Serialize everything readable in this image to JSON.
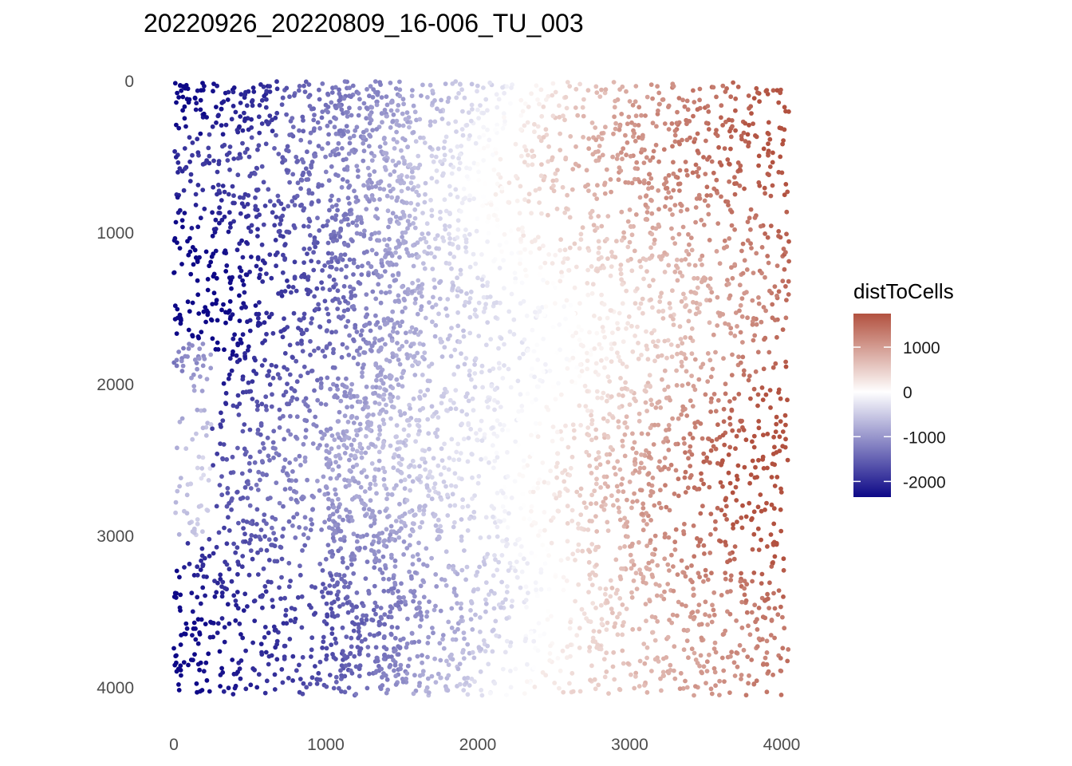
{
  "chart_data": {
    "type": "scatter",
    "title": "20220926_20220809_16-006_TU_003",
    "xlabel": "",
    "ylabel": "",
    "xlim": [
      0,
      4050
    ],
    "ylim": [
      0,
      4050
    ],
    "y_reversed": true,
    "grid": false,
    "x_ticks": [
      0,
      1000,
      2000,
      3000,
      4000
    ],
    "x_tick_labels": [
      "0",
      "1000",
      "2000",
      "3000",
      "4000"
    ],
    "y_ticks": [
      0,
      1000,
      2000,
      3000,
      4000
    ],
    "y_tick_labels": [
      "0",
      "1000",
      "2000",
      "3000",
      "4000"
    ],
    "color_variable": "distToCells",
    "colorbar": {
      "title": "distToCells",
      "range": [
        -2350,
        1750
      ],
      "ticks": [
        1000,
        0,
        -1000,
        -2000
      ],
      "tick_labels": [
        "1000",
        "0",
        "-1000",
        "-2000"
      ],
      "low_color": "#0d0887",
      "mid_color": "#ffffff",
      "high_color": "#b2513f",
      "placement": "right"
    },
    "point_color_model": "distToCells increases from about -2350 at x≈0 to about +1750 at x≈4050; point density varies across the field (dense bands near y≈0–300 at x<700, x≈1000–1600 across most y, and sparser toward the right edge)",
    "series": [
      {
        "x_range": [
          0,
          4050
        ],
        "y_range": [
          0,
          4050
        ],
        "point_count_approx": 5500,
        "values": []
      }
    ]
  }
}
